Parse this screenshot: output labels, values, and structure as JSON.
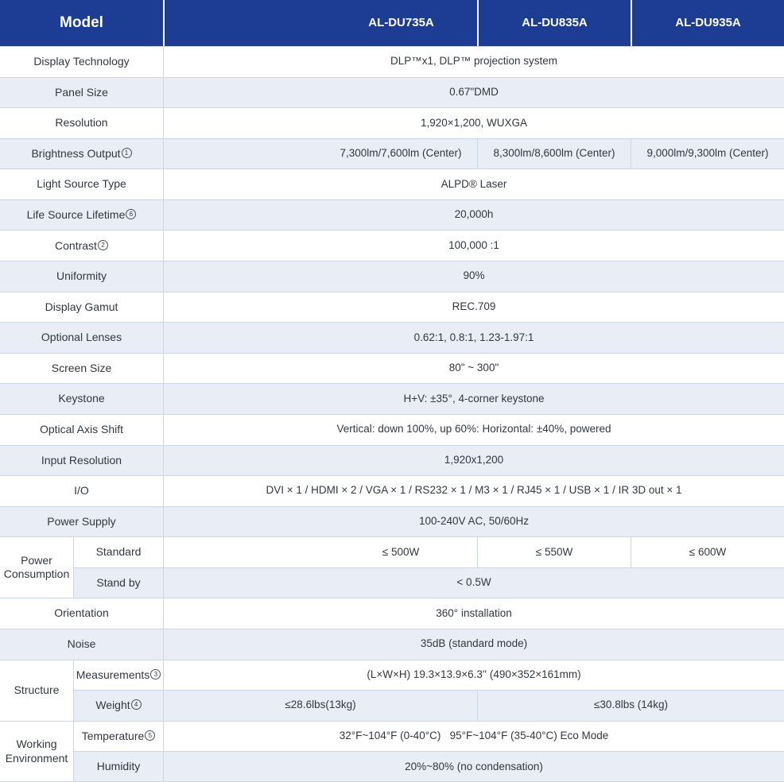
{
  "header": {
    "model": "Model",
    "col1": "AL-DU735A",
    "col2": "AL-DU835A",
    "col3": "AL-DU935A"
  },
  "specs": {
    "display_technology": {
      "label": "Display Technology",
      "value": "DLP™x1, DLP™ projection system"
    },
    "panel_size": {
      "label": "Panel Size",
      "value": "0.67\"DMD"
    },
    "resolution": {
      "label": "Resolution",
      "value": "1,920×1,200, WUXGA"
    },
    "brightness": {
      "label": "Brightness Output",
      "sup": "1",
      "v1": "7,300lm/7,600lm (Center)",
      "v2": "8,300lm/8,600lm (Center)",
      "v3": "9,000lm/9,300lm (Center)"
    },
    "light_source": {
      "label": "Light Source Type",
      "value": "ALPD® Laser"
    },
    "lifetime": {
      "label": "Life Source Lifetime",
      "sup": "6",
      "value": "20,000h"
    },
    "contrast": {
      "label": "Contrast",
      "sup": "2",
      "value": "100,000 :1"
    },
    "uniformity": {
      "label": "Uniformity",
      "value": "90%"
    },
    "display_gamut": {
      "label": "Display Gamut",
      "value": "REC.709"
    },
    "optional_lenses": {
      "label": "Optional Lenses",
      "value": "0.62:1, 0.8:1, 1.23-1.97:1"
    },
    "screen_size": {
      "label": "Screen Size",
      "value": "80\" ~ 300\""
    },
    "keystone": {
      "label": "Keystone",
      "value": "H+V: ±35°, 4-corner keystone"
    },
    "optical_axis_shift": {
      "label": "Optical Axis Shift",
      "value": "Vertical: down 100%, up 60%: Horizontal: ±40%, powered"
    },
    "input_resolution": {
      "label": "Input Resolution",
      "value": "1,920x1,200"
    },
    "io": {
      "label": "I/O",
      "value": "DVI × 1 / HDMI × 2 / VGA × 1 / RS232 × 1 / M3 × 1 / RJ45 × 1 / USB × 1 / IR 3D out × 1"
    },
    "power_supply": {
      "label": "Power Supply",
      "value": "100-240V AC, 50/60Hz"
    },
    "power_consumption": {
      "group": "Power Consumption",
      "standard_label": "Standard",
      "standard_v1": "≤ 500W",
      "standard_v2": "≤ 550W",
      "standard_v3": "≤ 600W",
      "standby_label": "Stand by",
      "standby_value": "< 0.5W"
    },
    "orientation": {
      "label": "Orientation",
      "value": "360° installation"
    },
    "noise": {
      "label": "Noise",
      "value": "35dB (standard mode)"
    },
    "structure": {
      "group": "Structure",
      "measurements_label": "Measurements",
      "measurements_sup": "3",
      "measurements_value": "(L×W×H) 19.3×13.9×6.3'' (490×352×161mm)",
      "weight_label": "Weight",
      "weight_sup": "4",
      "weight_v1": "≤28.6lbs(13kg)",
      "weight_v2": "≤30.8lbs (14kg)"
    },
    "environment": {
      "group": "Working Environment",
      "temperature_label": "Temperature",
      "temperature_sup": "5",
      "temperature_value": "32°F~104°F (0-40°C)   95°F~104°F (35-40°C) Eco Mode",
      "humidity_label": "Humidity",
      "humidity_value": "20%~80% (no condensation)"
    }
  },
  "colors": {
    "header_bg": "#1d3c94",
    "row_alt_bg": "#e8edf6",
    "border": "#ccd6e4"
  }
}
